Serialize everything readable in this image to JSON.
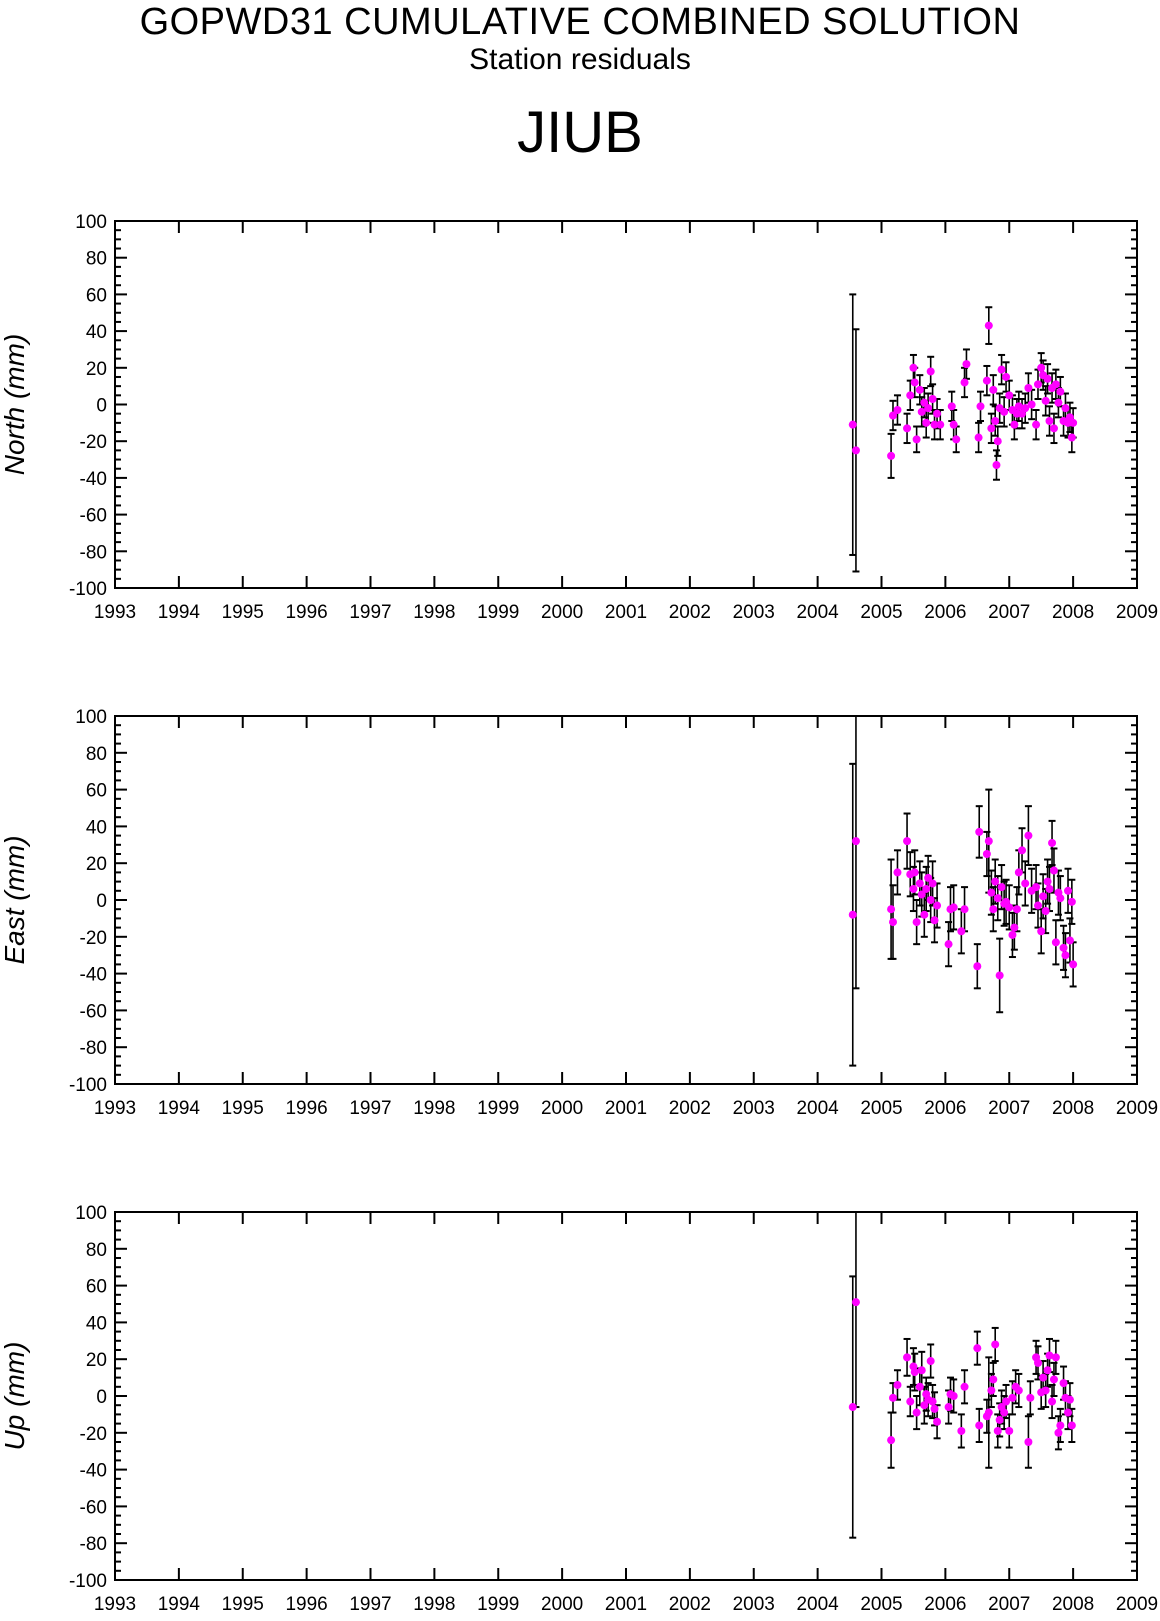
{
  "header": {
    "title": "GOPWD31 CUMULATIVE COMBINED SOLUTION",
    "subtitle": "Station residuals",
    "station": "JIUB"
  },
  "colors": {
    "point": "#ff00ff",
    "errorbar": "#000000",
    "axis": "#000000"
  },
  "chart_data": [
    {
      "type": "scatter",
      "ylabel": "North (mm)",
      "xlim": [
        1993,
        2009
      ],
      "ylim": [
        -100,
        100
      ],
      "x_ticks": [
        "1993",
        "1994",
        "1995",
        "1996",
        "1997",
        "1998",
        "1999",
        "2000",
        "2001",
        "2002",
        "2003",
        "2004",
        "2005",
        "2006",
        "2007",
        "2008",
        "2009"
      ],
      "y_ticks": [
        "100",
        "80",
        "60",
        "40",
        "20",
        "0",
        "-20",
        "-40",
        "-60",
        "-80",
        "-100"
      ],
      "points": [
        {
          "x": 2004.55,
          "y": -11,
          "err": 71
        },
        {
          "x": 2004.6,
          "y": -25,
          "err": 66
        },
        {
          "x": 2005.15,
          "y": -28,
          "err": 12
        },
        {
          "x": 2005.18,
          "y": -6,
          "err": 8
        },
        {
          "x": 2005.25,
          "y": -3,
          "err": 8
        },
        {
          "x": 2005.4,
          "y": -13,
          "err": 8
        },
        {
          "x": 2005.45,
          "y": 5,
          "err": 8
        },
        {
          "x": 2005.5,
          "y": 20,
          "err": 7
        },
        {
          "x": 2005.52,
          "y": 12,
          "err": 8
        },
        {
          "x": 2005.55,
          "y": -19,
          "err": 7
        },
        {
          "x": 2005.6,
          "y": 8,
          "err": 8
        },
        {
          "x": 2005.63,
          "y": -4,
          "err": 8
        },
        {
          "x": 2005.67,
          "y": 1,
          "err": 8
        },
        {
          "x": 2005.7,
          "y": -10,
          "err": 8
        },
        {
          "x": 2005.73,
          "y": -2,
          "err": 8
        },
        {
          "x": 2005.77,
          "y": 18,
          "err": 8
        },
        {
          "x": 2005.8,
          "y": 3,
          "err": 8
        },
        {
          "x": 2005.83,
          "y": -11,
          "err": 8
        },
        {
          "x": 2005.87,
          "y": -5,
          "err": 8
        },
        {
          "x": 2005.92,
          "y": -11,
          "err": 8
        },
        {
          "x": 2006.1,
          "y": -1,
          "err": 8
        },
        {
          "x": 2006.13,
          "y": -11,
          "err": 8
        },
        {
          "x": 2006.17,
          "y": -19,
          "err": 7
        },
        {
          "x": 2006.3,
          "y": 12,
          "err": 8
        },
        {
          "x": 2006.33,
          "y": 22,
          "err": 8
        },
        {
          "x": 2006.52,
          "y": -18,
          "err": 8
        },
        {
          "x": 2006.55,
          "y": -1,
          "err": 8
        },
        {
          "x": 2006.65,
          "y": 13,
          "err": 8
        },
        {
          "x": 2006.68,
          "y": 43,
          "err": 10
        },
        {
          "x": 2006.72,
          "y": -13,
          "err": 8
        },
        {
          "x": 2006.75,
          "y": 8,
          "err": 8
        },
        {
          "x": 2006.78,
          "y": -9,
          "err": 8
        },
        {
          "x": 2006.8,
          "y": -33,
          "err": 8
        },
        {
          "x": 2006.82,
          "y": -20,
          "err": 8
        },
        {
          "x": 2006.85,
          "y": -2,
          "err": 8
        },
        {
          "x": 2006.88,
          "y": 19,
          "err": 8
        },
        {
          "x": 2006.92,
          "y": -4,
          "err": 8
        },
        {
          "x": 2006.95,
          "y": 15,
          "err": 8
        },
        {
          "x": 2007.0,
          "y": 5,
          "err": 8
        },
        {
          "x": 2007.05,
          "y": -3,
          "err": 8
        },
        {
          "x": 2007.08,
          "y": -11,
          "err": 8
        },
        {
          "x": 2007.12,
          "y": -5,
          "err": 8
        },
        {
          "x": 2007.15,
          "y": -1,
          "err": 8
        },
        {
          "x": 2007.2,
          "y": -5,
          "err": 8
        },
        {
          "x": 2007.25,
          "y": -2,
          "err": 8
        },
        {
          "x": 2007.3,
          "y": 9,
          "err": 8
        },
        {
          "x": 2007.35,
          "y": 0,
          "err": 8
        },
        {
          "x": 2007.42,
          "y": -11,
          "err": 8
        },
        {
          "x": 2007.45,
          "y": 11,
          "err": 8
        },
        {
          "x": 2007.5,
          "y": 20,
          "err": 8
        },
        {
          "x": 2007.53,
          "y": 16,
          "err": 8
        },
        {
          "x": 2007.57,
          "y": 2,
          "err": 8
        },
        {
          "x": 2007.6,
          "y": 14,
          "err": 8
        },
        {
          "x": 2007.63,
          "y": -9,
          "err": 8
        },
        {
          "x": 2007.67,
          "y": 9,
          "err": 8
        },
        {
          "x": 2007.7,
          "y": -13,
          "err": 8
        },
        {
          "x": 2007.73,
          "y": 11,
          "err": 8
        },
        {
          "x": 2007.77,
          "y": 1,
          "err": 8
        },
        {
          "x": 2007.8,
          "y": 7,
          "err": 8
        },
        {
          "x": 2007.85,
          "y": -9,
          "err": 8
        },
        {
          "x": 2007.88,
          "y": -2,
          "err": 8
        },
        {
          "x": 2007.92,
          "y": -10,
          "err": 8
        },
        {
          "x": 2007.95,
          "y": -7,
          "err": 8
        },
        {
          "x": 2007.98,
          "y": -18,
          "err": 8
        },
        {
          "x": 2008.0,
          "y": -10,
          "err": 8
        }
      ]
    },
    {
      "type": "scatter",
      "ylabel": "East (mm)",
      "xlim": [
        1993,
        2009
      ],
      "ylim": [
        -100,
        100
      ],
      "x_ticks": [
        "1993",
        "1994",
        "1995",
        "1996",
        "1997",
        "1998",
        "1999",
        "2000",
        "2001",
        "2002",
        "2003",
        "2004",
        "2005",
        "2006",
        "2007",
        "2008",
        "2009"
      ],
      "y_ticks": [
        "100",
        "80",
        "60",
        "40",
        "20",
        "0",
        "-20",
        "-40",
        "-60",
        "-80",
        "-100"
      ],
      "points": [
        {
          "x": 2004.55,
          "y": -8,
          "err": 82
        },
        {
          "x": 2004.6,
          "y": 32,
          "err": 80
        },
        {
          "x": 2005.15,
          "y": -5,
          "err": 27
        },
        {
          "x": 2005.18,
          "y": -12,
          "err": 20
        },
        {
          "x": 2005.25,
          "y": 15,
          "err": 12
        },
        {
          "x": 2005.4,
          "y": 32,
          "err": 15
        },
        {
          "x": 2005.45,
          "y": 14,
          "err": 12
        },
        {
          "x": 2005.5,
          "y": 6,
          "err": 12
        },
        {
          "x": 2005.52,
          "y": 15,
          "err": 12
        },
        {
          "x": 2005.55,
          "y": -12,
          "err": 12
        },
        {
          "x": 2005.6,
          "y": 9,
          "err": 12
        },
        {
          "x": 2005.63,
          "y": 3,
          "err": 12
        },
        {
          "x": 2005.67,
          "y": -8,
          "err": 12
        },
        {
          "x": 2005.7,
          "y": 6,
          "err": 12
        },
        {
          "x": 2005.73,
          "y": 12,
          "err": 12
        },
        {
          "x": 2005.77,
          "y": 0,
          "err": 12
        },
        {
          "x": 2005.8,
          "y": 9,
          "err": 12
        },
        {
          "x": 2005.83,
          "y": -11,
          "err": 12
        },
        {
          "x": 2005.87,
          "y": -3,
          "err": 12
        },
        {
          "x": 2006.05,
          "y": -24,
          "err": 12
        },
        {
          "x": 2006.08,
          "y": -5,
          "err": 12
        },
        {
          "x": 2006.13,
          "y": -4,
          "err": 12
        },
        {
          "x": 2006.25,
          "y": -17,
          "err": 12
        },
        {
          "x": 2006.3,
          "y": -5,
          "err": 12
        },
        {
          "x": 2006.5,
          "y": -36,
          "err": 12
        },
        {
          "x": 2006.53,
          "y": 37,
          "err": 14
        },
        {
          "x": 2006.65,
          "y": 25,
          "err": 12
        },
        {
          "x": 2006.68,
          "y": 32,
          "err": 28
        },
        {
          "x": 2006.72,
          "y": 4,
          "err": 12
        },
        {
          "x": 2006.75,
          "y": -5,
          "err": 12
        },
        {
          "x": 2006.78,
          "y": 10,
          "err": 12
        },
        {
          "x": 2006.82,
          "y": 1,
          "err": 12
        },
        {
          "x": 2006.85,
          "y": -41,
          "err": 20
        },
        {
          "x": 2006.88,
          "y": 7,
          "err": 12
        },
        {
          "x": 2006.92,
          "y": -2,
          "err": 12
        },
        {
          "x": 2006.95,
          "y": -1,
          "err": 12
        },
        {
          "x": 2007.0,
          "y": -4,
          "err": 12
        },
        {
          "x": 2007.05,
          "y": -19,
          "err": 12
        },
        {
          "x": 2007.08,
          "y": -15,
          "err": 12
        },
        {
          "x": 2007.12,
          "y": -5,
          "err": 12
        },
        {
          "x": 2007.15,
          "y": 15,
          "err": 12
        },
        {
          "x": 2007.2,
          "y": 27,
          "err": 12
        },
        {
          "x": 2007.25,
          "y": 9,
          "err": 12
        },
        {
          "x": 2007.3,
          "y": 35,
          "err": 16
        },
        {
          "x": 2007.35,
          "y": 5,
          "err": 12
        },
        {
          "x": 2007.42,
          "y": 7,
          "err": 12
        },
        {
          "x": 2007.45,
          "y": -3,
          "err": 12
        },
        {
          "x": 2007.5,
          "y": -17,
          "err": 12
        },
        {
          "x": 2007.53,
          "y": 2,
          "err": 12
        },
        {
          "x": 2007.57,
          "y": -6,
          "err": 12
        },
        {
          "x": 2007.6,
          "y": 10,
          "err": 12
        },
        {
          "x": 2007.63,
          "y": 6,
          "err": 12
        },
        {
          "x": 2007.67,
          "y": 31,
          "err": 12
        },
        {
          "x": 2007.7,
          "y": 16,
          "err": 12
        },
        {
          "x": 2007.73,
          "y": -23,
          "err": 12
        },
        {
          "x": 2007.77,
          "y": 4,
          "err": 12
        },
        {
          "x": 2007.8,
          "y": 1,
          "err": 12
        },
        {
          "x": 2007.85,
          "y": -26,
          "err": 12
        },
        {
          "x": 2007.88,
          "y": -30,
          "err": 12
        },
        {
          "x": 2007.92,
          "y": 5,
          "err": 12
        },
        {
          "x": 2007.95,
          "y": -22,
          "err": 12
        },
        {
          "x": 2007.98,
          "y": -1,
          "err": 12
        },
        {
          "x": 2008.0,
          "y": -35,
          "err": 12
        }
      ]
    },
    {
      "type": "scatter",
      "ylabel": "Up (mm)",
      "xlim": [
        1993,
        2009
      ],
      "ylim": [
        -100,
        100
      ],
      "x_ticks": [
        "1993",
        "1994",
        "1995",
        "1996",
        "1997",
        "1998",
        "1999",
        "2000",
        "2001",
        "2002",
        "2003",
        "2004",
        "2005",
        "2006",
        "2007",
        "2008",
        "2009"
      ],
      "y_ticks": [
        "100",
        "80",
        "60",
        "40",
        "20",
        "0",
        "-20",
        "-40",
        "-60",
        "-80",
        "-100"
      ],
      "points": [
        {
          "x": 2004.55,
          "y": -6,
          "err": 71
        },
        {
          "x": 2004.6,
          "y": 51,
          "err": 57
        },
        {
          "x": 2005.15,
          "y": -24,
          "err": 15
        },
        {
          "x": 2005.18,
          "y": -1,
          "err": 8
        },
        {
          "x": 2005.25,
          "y": 6,
          "err": 8
        },
        {
          "x": 2005.4,
          "y": 21,
          "err": 10
        },
        {
          "x": 2005.45,
          "y": -3,
          "err": 8
        },
        {
          "x": 2005.5,
          "y": 16,
          "err": 10
        },
        {
          "x": 2005.52,
          "y": 13,
          "err": 10
        },
        {
          "x": 2005.55,
          "y": -9,
          "err": 9
        },
        {
          "x": 2005.6,
          "y": 5,
          "err": 10
        },
        {
          "x": 2005.63,
          "y": 14,
          "err": 10
        },
        {
          "x": 2005.67,
          "y": -5,
          "err": 10
        },
        {
          "x": 2005.7,
          "y": 1,
          "err": 9
        },
        {
          "x": 2005.73,
          "y": -2,
          "err": 9
        },
        {
          "x": 2005.77,
          "y": 19,
          "err": 9
        },
        {
          "x": 2005.8,
          "y": -3,
          "err": 9
        },
        {
          "x": 2005.83,
          "y": -7,
          "err": 9
        },
        {
          "x": 2005.87,
          "y": -14,
          "err": 9
        },
        {
          "x": 2006.05,
          "y": -6,
          "err": 9
        },
        {
          "x": 2006.08,
          "y": 1,
          "err": 9
        },
        {
          "x": 2006.13,
          "y": 0,
          "err": 9
        },
        {
          "x": 2006.25,
          "y": -19,
          "err": 9
        },
        {
          "x": 2006.3,
          "y": 5,
          "err": 9
        },
        {
          "x": 2006.5,
          "y": 26,
          "err": 9
        },
        {
          "x": 2006.53,
          "y": -16,
          "err": 9
        },
        {
          "x": 2006.65,
          "y": -11,
          "err": 9
        },
        {
          "x": 2006.68,
          "y": -9,
          "err": 30
        },
        {
          "x": 2006.72,
          "y": 3,
          "err": 9
        },
        {
          "x": 2006.75,
          "y": 9,
          "err": 9
        },
        {
          "x": 2006.78,
          "y": 28,
          "err": 9
        },
        {
          "x": 2006.82,
          "y": -19,
          "err": 9
        },
        {
          "x": 2006.85,
          "y": -13,
          "err": 9
        },
        {
          "x": 2006.88,
          "y": -6,
          "err": 9
        },
        {
          "x": 2006.92,
          "y": -9,
          "err": 9
        },
        {
          "x": 2006.95,
          "y": -3,
          "err": 9
        },
        {
          "x": 2007.0,
          "y": -19,
          "err": 9
        },
        {
          "x": 2007.05,
          "y": -1,
          "err": 9
        },
        {
          "x": 2007.1,
          "y": 5,
          "err": 9
        },
        {
          "x": 2007.15,
          "y": 3,
          "err": 9
        },
        {
          "x": 2007.3,
          "y": -25,
          "err": 14
        },
        {
          "x": 2007.33,
          "y": -1,
          "err": 9
        },
        {
          "x": 2007.42,
          "y": 21,
          "err": 9
        },
        {
          "x": 2007.45,
          "y": 18,
          "err": 9
        },
        {
          "x": 2007.5,
          "y": 2,
          "err": 9
        },
        {
          "x": 2007.53,
          "y": 10,
          "err": 9
        },
        {
          "x": 2007.57,
          "y": 3,
          "err": 9
        },
        {
          "x": 2007.6,
          "y": 14,
          "err": 9
        },
        {
          "x": 2007.63,
          "y": 22,
          "err": 9
        },
        {
          "x": 2007.67,
          "y": -3,
          "err": 9
        },
        {
          "x": 2007.7,
          "y": 9,
          "err": 9
        },
        {
          "x": 2007.73,
          "y": 21,
          "err": 9
        },
        {
          "x": 2007.77,
          "y": -20,
          "err": 9
        },
        {
          "x": 2007.8,
          "y": -16,
          "err": 9
        },
        {
          "x": 2007.85,
          "y": 7,
          "err": 9
        },
        {
          "x": 2007.88,
          "y": -1,
          "err": 9
        },
        {
          "x": 2007.92,
          "y": -9,
          "err": 9
        },
        {
          "x": 2007.95,
          "y": -2,
          "err": 9
        },
        {
          "x": 2007.98,
          "y": -16,
          "err": 9
        }
      ]
    }
  ]
}
